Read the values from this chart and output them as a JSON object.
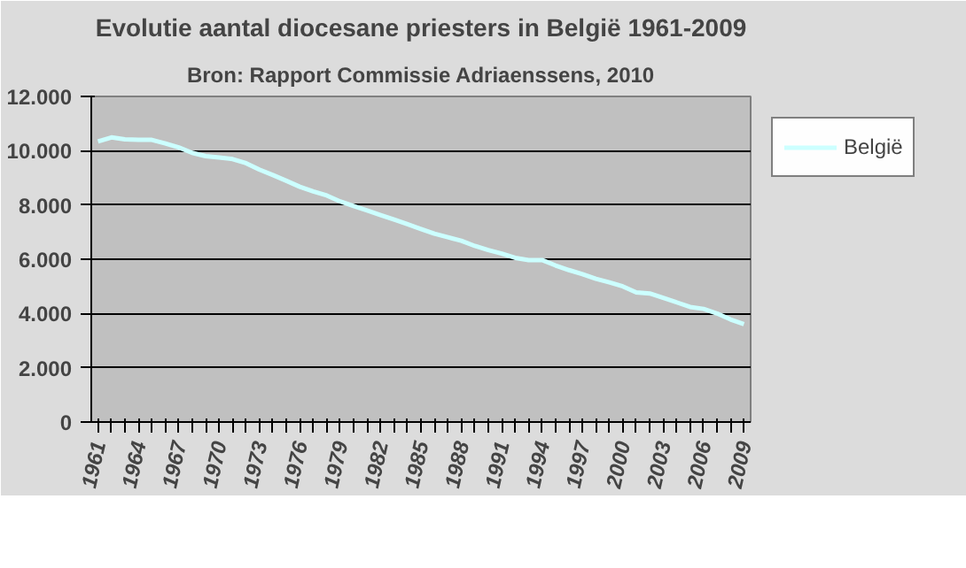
{
  "chart_data": {
    "type": "line",
    "title": "Evolutie aantal diocesane priesters in België 1961-2009",
    "subtitle": "Bron: Rapport Commissie Adriaenssens, 2010",
    "categories": [
      "1961",
      null,
      null,
      "1964",
      null,
      null,
      "1967",
      null,
      null,
      "1970",
      null,
      null,
      "1973",
      null,
      null,
      "1976",
      null,
      null,
      "1979",
      null,
      null,
      "1982",
      null,
      null,
      "1985",
      null,
      null,
      "1988",
      null,
      null,
      "1991",
      null,
      null,
      "1994",
      null,
      null,
      "1997",
      null,
      null,
      "2000",
      null,
      null,
      "2003",
      null,
      null,
      "2006",
      null,
      null,
      "2009"
    ],
    "series": [
      {
        "name": "België",
        "color": "#ccffff",
        "values": [
          10340,
          10490,
          10420,
          10400,
          10400,
          10270,
          10120,
          9920,
          9800,
          9750,
          9690,
          9540,
          9300,
          9100,
          8890,
          8670,
          8500,
          8350,
          8130,
          7960,
          7800,
          7630,
          7460,
          7290,
          7110,
          6940,
          6810,
          6680,
          6490,
          6340,
          6210,
          6050,
          5970,
          5970,
          5770,
          5600,
          5450,
          5280,
          5150,
          5000,
          4780,
          4740,
          4580,
          4410,
          4240,
          4170,
          4000,
          3780,
          3610
        ]
      }
    ],
    "ylim": [
      0,
      12000
    ],
    "yticks": [
      {
        "value": 0,
        "label": "0"
      },
      {
        "value": 2000,
        "label": "2.000"
      },
      {
        "value": 4000,
        "label": "4.000"
      },
      {
        "value": 6000,
        "label": "6.000"
      },
      {
        "value": 8000,
        "label": "8.000"
      },
      {
        "value": 10000,
        "label": "10.000"
      },
      {
        "value": 12000,
        "label": "12.000"
      }
    ],
    "grid": "y",
    "legend": "right",
    "marker": "none",
    "line_style": "solid"
  }
}
